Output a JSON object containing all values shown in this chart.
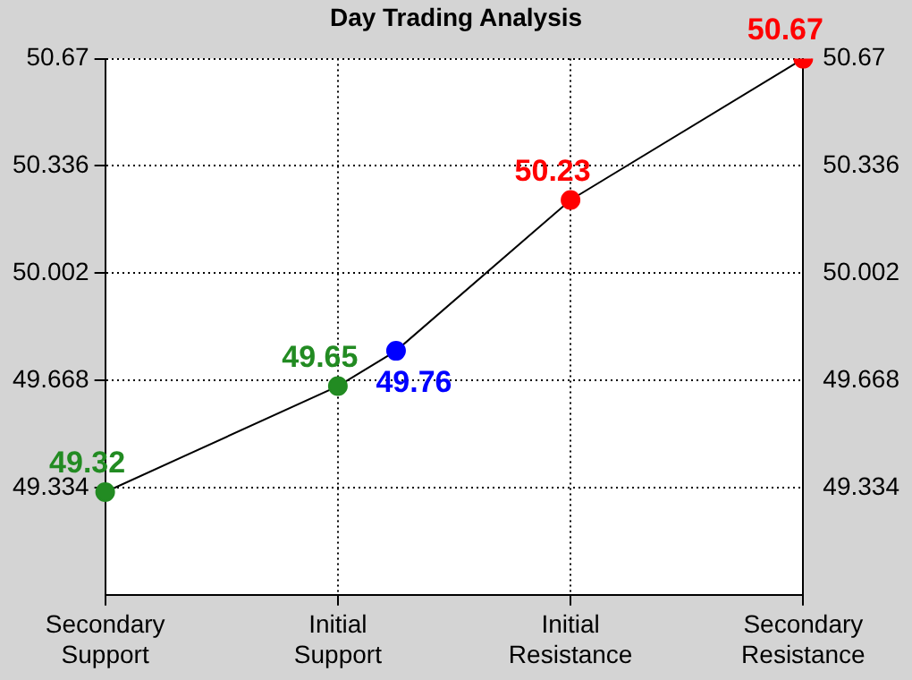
{
  "chart_data": {
    "type": "line",
    "title": "Day Trading Analysis",
    "categories": [
      "Secondary\nSupport",
      null,
      null,
      null,
      "Initial\nSupport",
      null,
      null,
      null,
      "Initial\nResistance",
      null,
      null,
      null,
      "Secondary\nResistance"
    ],
    "ylim": [
      49.0,
      50.67
    ],
    "yticks": [
      49.334,
      49.668,
      50.002,
      50.336,
      50.67
    ],
    "y2lim": [
      49.0,
      50.67
    ],
    "y2ticks": [
      49.334,
      49.668,
      50.002,
      50.336,
      50.67
    ],
    "grid": true,
    "data_labels": true,
    "marker": "circle",
    "series": [
      {
        "color": "#000000",
        "colors": [
          "#228b22",
          null,
          null,
          null,
          "#228b22",
          "#0000ff",
          null,
          null,
          "#ff0000",
          null,
          null,
          null,
          "#ff0000"
        ],
        "values": [
          49.32,
          null,
          null,
          null,
          49.65,
          49.76,
          null,
          null,
          50.23,
          null,
          null,
          null,
          50.67
        ]
      }
    ]
  }
}
